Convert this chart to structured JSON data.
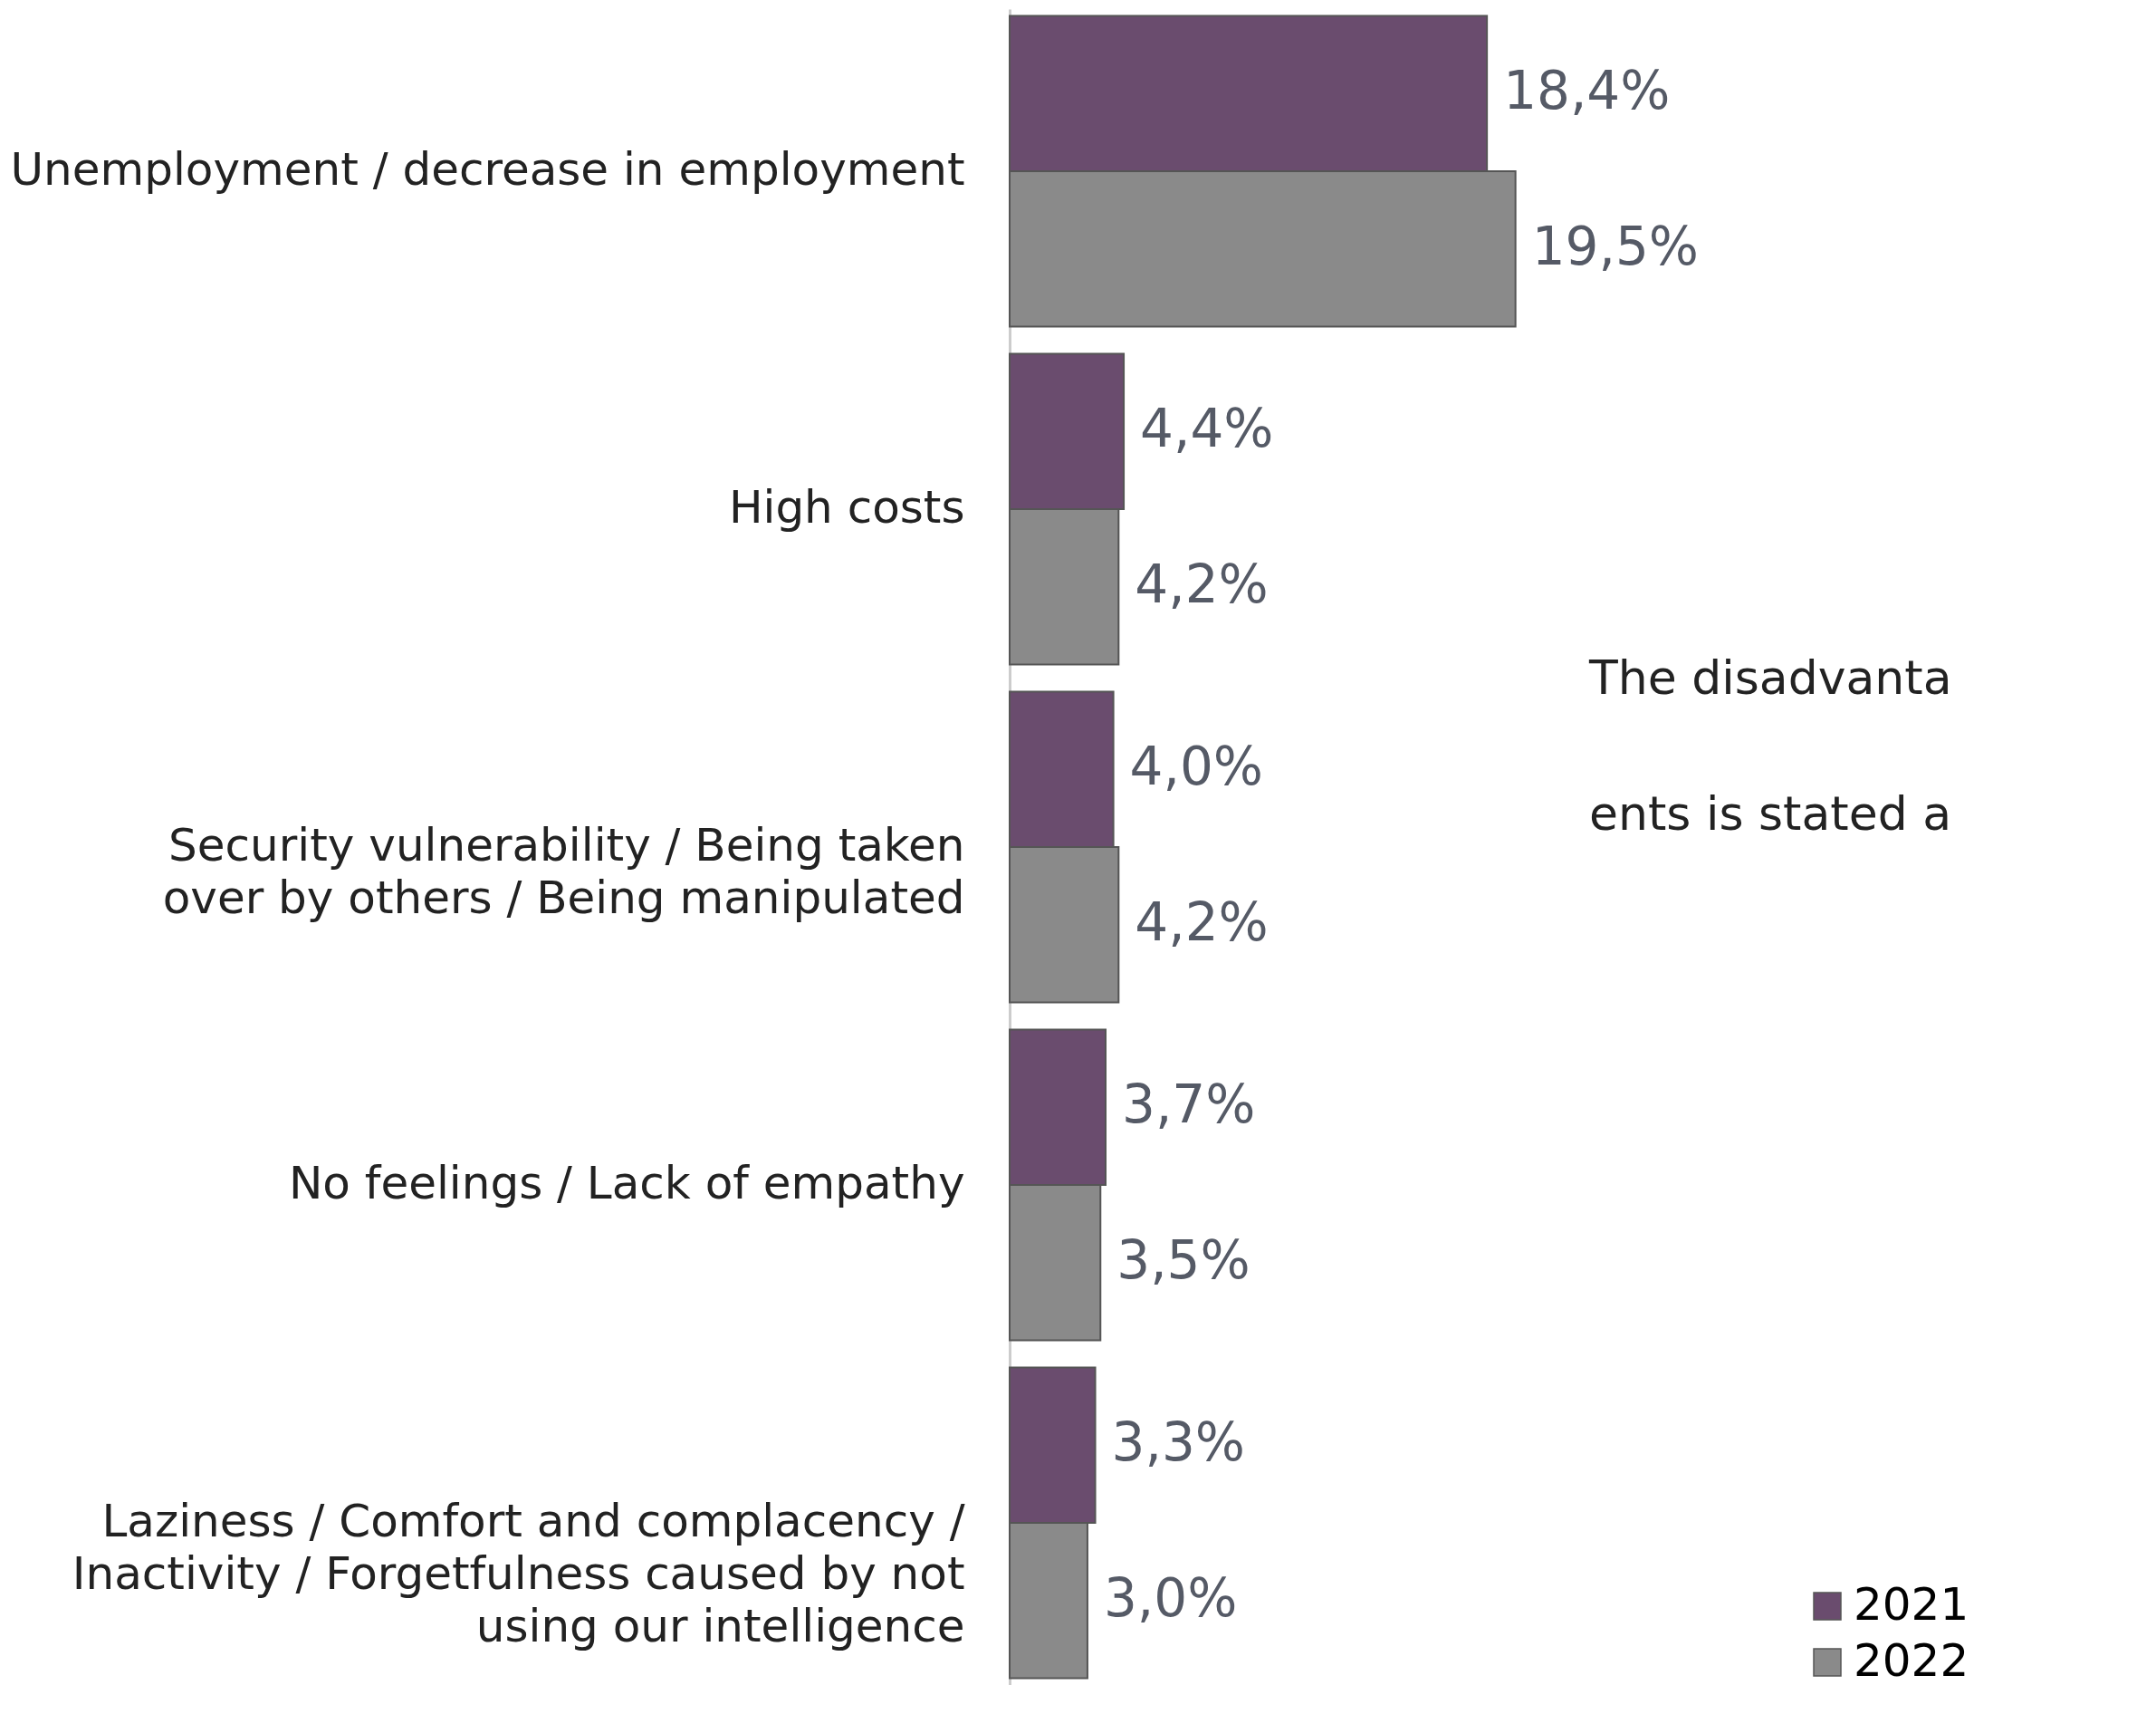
{
  "chart_data": {
    "type": "bar",
    "orientation": "horizontal",
    "categories": [
      "Unemployment / decrease in employment",
      "High costs",
      "Security vulnerability / Being taken over by others / Being manipulated",
      "No feelings / Lack of empathy",
      "Laziness / Comfort and complacency / Inactivity / Forgetfulness caused by not using our intelligence"
    ],
    "series": [
      {
        "name": "2021",
        "color": "#6a4c6e",
        "values": [
          18.4,
          4.4,
          4.0,
          3.7,
          3.3
        ],
        "value_labels": [
          "18,4%",
          "4,4%",
          "4,0%",
          "3,7%",
          "3,3%"
        ]
      },
      {
        "name": "2022",
        "color": "#8a8a8a",
        "values": [
          19.5,
          4.2,
          4.2,
          3.5,
          3.0
        ],
        "value_labels": [
          "19,5%",
          "4,2%",
          "4,2%",
          "3,5%",
          "3,0%"
        ]
      }
    ],
    "xlim": [
      0,
      37
    ],
    "annotations": [
      "The disadvanta",
      "ents is stated a"
    ],
    "legend": "bottom right"
  }
}
